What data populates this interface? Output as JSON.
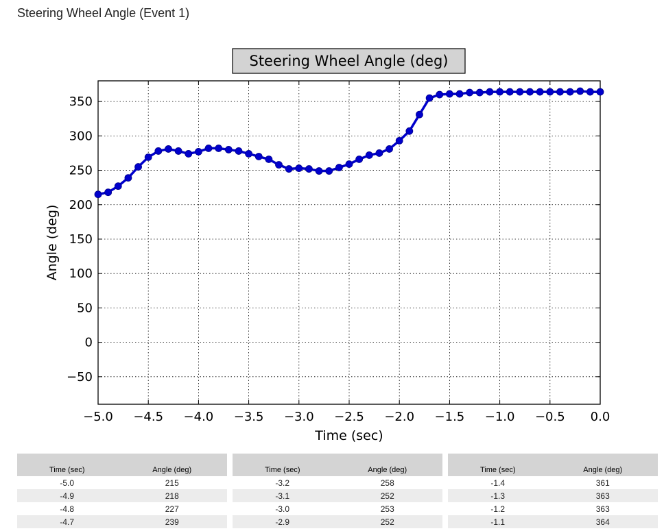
{
  "page": {
    "title": "Steering Wheel Angle (Event 1)"
  },
  "chart_data": {
    "type": "line",
    "title": "Steering Wheel Angle (deg)",
    "xlabel": "Time (sec)",
    "ylabel": "Angle (deg)",
    "xlim": [
      -5.0,
      0.0
    ],
    "ylim": [
      -90,
      380
    ],
    "xticks": [
      -5.0,
      -4.5,
      -4.0,
      -3.5,
      -3.0,
      -2.5,
      -2.0,
      -1.5,
      -1.0,
      -0.5,
      0.0
    ],
    "xtick_labels": [
      "−5.0",
      "−4.5",
      "−4.0",
      "−3.5",
      "−3.0",
      "−2.5",
      "−2.0",
      "−1.5",
      "−1.0",
      "−0.5",
      "0.0"
    ],
    "yticks": [
      -50,
      0,
      50,
      100,
      150,
      200,
      250,
      300,
      350
    ],
    "ytick_labels": [
      "−50",
      "0",
      "50",
      "100",
      "150",
      "200",
      "250",
      "300",
      "350"
    ],
    "grid": true,
    "color": "#0000cc",
    "series": [
      {
        "x": [
          -5.0,
          -4.9,
          -4.8,
          -4.7,
          -4.6,
          -4.5,
          -4.4,
          -4.3,
          -4.2,
          -4.1,
          -4.0,
          -3.9,
          -3.8,
          -3.7,
          -3.6,
          -3.5,
          -3.4,
          -3.3,
          -3.2,
          -3.1,
          -3.0,
          -2.9,
          -2.8,
          -2.7,
          -2.6,
          -2.5,
          -2.4,
          -2.3,
          -2.2,
          -2.1,
          -2.0,
          -1.9,
          -1.8,
          -1.7,
          -1.6,
          -1.5,
          -1.4,
          -1.3,
          -1.2,
          -1.1,
          -1.0,
          -0.9,
          -0.8,
          -0.7,
          -0.6,
          -0.5,
          -0.4,
          -0.3,
          -0.2,
          -0.1,
          0.0
        ],
        "y": [
          215,
          218,
          227,
          239,
          255,
          269,
          278,
          281,
          278,
          274,
          277,
          282,
          282,
          280,
          278,
          274,
          270,
          266,
          258,
          252,
          253,
          252,
          249,
          249,
          254,
          259,
          266,
          272,
          275,
          281,
          293,
          307,
          331,
          355,
          360,
          361,
          361,
          363,
          363,
          364,
          364,
          364,
          364,
          364,
          364,
          364,
          364,
          364,
          365,
          364,
          364
        ]
      }
    ]
  },
  "tables": [
    {
      "headers": [
        "Time (sec)",
        "Angle (deg)"
      ],
      "rows": [
        [
          "-5.0",
          "215"
        ],
        [
          "-4.9",
          "218"
        ],
        [
          "-4.8",
          "227"
        ],
        [
          "-4.7",
          "239"
        ]
      ]
    },
    {
      "headers": [
        "Time (sec)",
        "Angle (deg)"
      ],
      "rows": [
        [
          "-3.2",
          "258"
        ],
        [
          "-3.1",
          "252"
        ],
        [
          "-3.0",
          "253"
        ],
        [
          "-2.9",
          "252"
        ]
      ]
    },
    {
      "headers": [
        "Time (sec)",
        "Angle (deg)"
      ],
      "rows": [
        [
          "-1.4",
          "361"
        ],
        [
          "-1.3",
          "363"
        ],
        [
          "-1.2",
          "363"
        ],
        [
          "-1.1",
          "364"
        ]
      ]
    }
  ]
}
